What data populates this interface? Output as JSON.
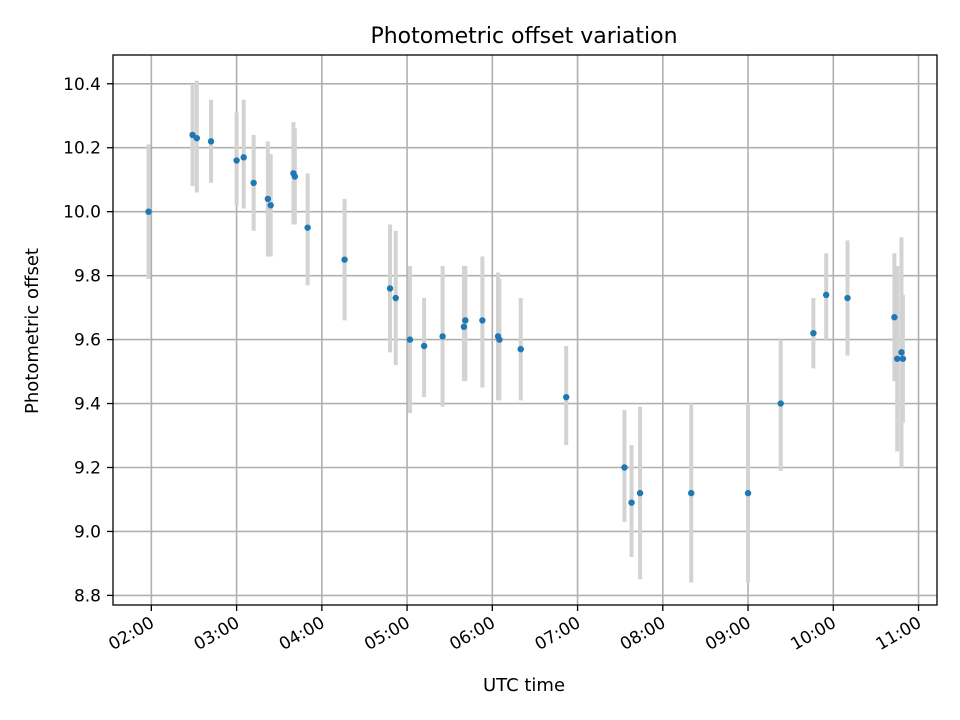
{
  "chart_data": {
    "type": "scatter",
    "title": "Photometric offset variation",
    "xlabel": "UTC time",
    "ylabel": "Photometric offset",
    "xlim": [
      "01:33",
      "11:13"
    ],
    "ylim": [
      8.77,
      10.49
    ],
    "x_ticks": [
      "02:00",
      "03:00",
      "04:00",
      "05:00",
      "06:00",
      "07:00",
      "08:00",
      "09:00",
      "10:00",
      "11:00"
    ],
    "y_ticks": [
      8.8,
      9.0,
      9.2,
      9.4,
      9.6,
      9.8,
      10.0,
      10.2,
      10.4
    ],
    "grid": true,
    "marker_color": "#1f77b4",
    "errorbar_color": "#d3d3d3",
    "points": [
      {
        "x": "01:58",
        "y": 10.0,
        "ylow": 9.79,
        "yhigh": 10.21
      },
      {
        "x": "02:29",
        "y": 10.24,
        "ylow": 10.08,
        "yhigh": 10.4
      },
      {
        "x": "02:32",
        "y": 10.23,
        "ylow": 10.06,
        "yhigh": 10.41
      },
      {
        "x": "02:42",
        "y": 10.22,
        "ylow": 10.09,
        "yhigh": 10.35
      },
      {
        "x": "03:00",
        "y": 10.16,
        "ylow": 10.02,
        "yhigh": 10.31
      },
      {
        "x": "03:05",
        "y": 10.17,
        "ylow": 10.01,
        "yhigh": 10.35
      },
      {
        "x": "03:12",
        "y": 10.09,
        "ylow": 9.94,
        "yhigh": 10.24
      },
      {
        "x": "03:22",
        "y": 10.04,
        "ylow": 9.86,
        "yhigh": 10.22
      },
      {
        "x": "03:24",
        "y": 10.02,
        "ylow": 9.86,
        "yhigh": 10.18
      },
      {
        "x": "03:40",
        "y": 10.12,
        "ylow": 9.96,
        "yhigh": 10.28
      },
      {
        "x": "03:41",
        "y": 10.11,
        "ylow": 9.96,
        "yhigh": 10.26
      },
      {
        "x": "03:50",
        "y": 9.95,
        "ylow": 9.77,
        "yhigh": 10.12
      },
      {
        "x": "04:16",
        "y": 9.85,
        "ylow": 9.66,
        "yhigh": 10.04
      },
      {
        "x": "04:48",
        "y": 9.76,
        "ylow": 9.56,
        "yhigh": 9.96
      },
      {
        "x": "04:52",
        "y": 9.73,
        "ylow": 9.52,
        "yhigh": 9.94
      },
      {
        "x": "05:02",
        "y": 9.6,
        "ylow": 9.37,
        "yhigh": 9.83
      },
      {
        "x": "05:12",
        "y": 9.58,
        "ylow": 9.42,
        "yhigh": 9.73
      },
      {
        "x": "05:25",
        "y": 9.61,
        "ylow": 9.39,
        "yhigh": 9.83
      },
      {
        "x": "05:40",
        "y": 9.64,
        "ylow": 9.47,
        "yhigh": 9.83
      },
      {
        "x": "05:41",
        "y": 9.66,
        "ylow": 9.47,
        "yhigh": 9.83
      },
      {
        "x": "05:53",
        "y": 9.66,
        "ylow": 9.45,
        "yhigh": 9.86
      },
      {
        "x": "06:04",
        "y": 9.61,
        "ylow": 9.41,
        "yhigh": 9.81
      },
      {
        "x": "06:05",
        "y": 9.6,
        "ylow": 9.41,
        "yhigh": 9.79
      },
      {
        "x": "06:20",
        "y": 9.57,
        "ylow": 9.41,
        "yhigh": 9.73
      },
      {
        "x": "06:52",
        "y": 9.42,
        "ylow": 9.27,
        "yhigh": 9.58
      },
      {
        "x": "07:33",
        "y": 9.2,
        "ylow": 9.03,
        "yhigh": 9.38
      },
      {
        "x": "07:38",
        "y": 9.09,
        "ylow": 8.92,
        "yhigh": 9.27
      },
      {
        "x": "07:44",
        "y": 9.12,
        "ylow": 8.85,
        "yhigh": 9.39
      },
      {
        "x": "08:20",
        "y": 9.12,
        "ylow": 8.84,
        "yhigh": 9.4
      },
      {
        "x": "09:00",
        "y": 9.12,
        "ylow": 8.84,
        "yhigh": 9.4
      },
      {
        "x": "09:23",
        "y": 9.4,
        "ylow": 9.19,
        "yhigh": 9.6
      },
      {
        "x": "09:46",
        "y": 9.62,
        "ylow": 9.51,
        "yhigh": 9.73
      },
      {
        "x": "09:55",
        "y": 9.74,
        "ylow": 9.6,
        "yhigh": 9.87
      },
      {
        "x": "10:10",
        "y": 9.73,
        "ylow": 9.55,
        "yhigh": 9.91
      },
      {
        "x": "10:43",
        "y": 9.67,
        "ylow": 9.47,
        "yhigh": 9.87
      },
      {
        "x": "10:45",
        "y": 9.54,
        "ylow": 9.25,
        "yhigh": 9.83
      },
      {
        "x": "10:48",
        "y": 9.56,
        "ylow": 9.2,
        "yhigh": 9.92
      },
      {
        "x": "10:49",
        "y": 9.54,
        "ylow": 9.34,
        "yhigh": 9.74
      }
    ]
  }
}
